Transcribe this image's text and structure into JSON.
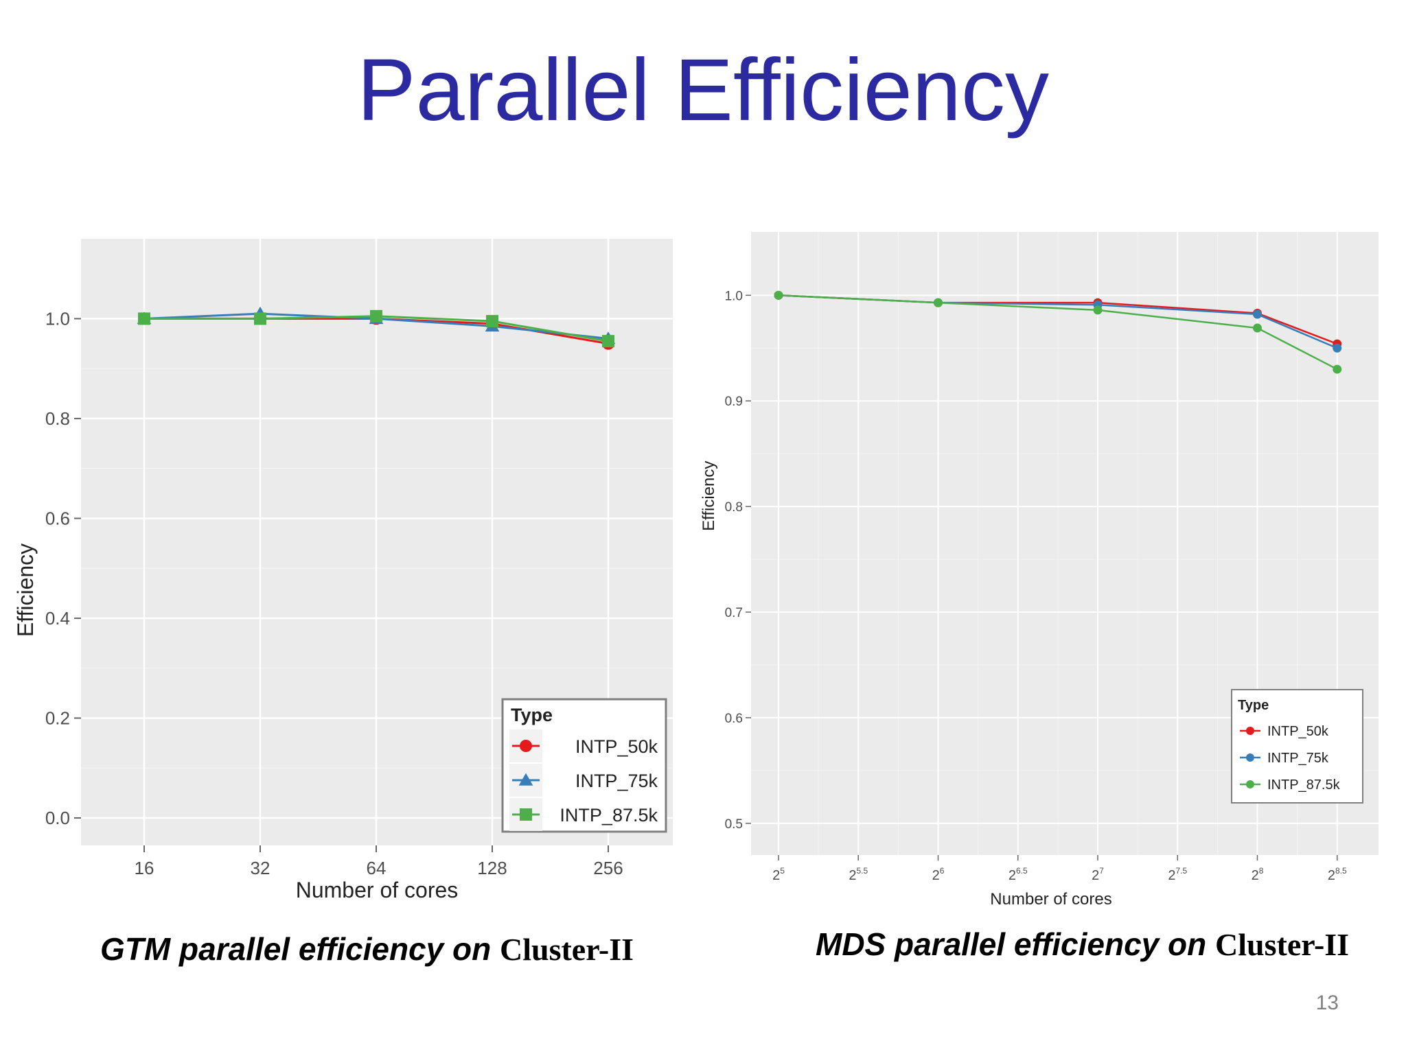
{
  "slide": {
    "title": "Parallel Efficiency",
    "page_number": "13",
    "captions": [
      {
        "italic": "GTM parallel efficiency on ",
        "rest": "Cluster-II"
      },
      {
        "italic": "MDS parallel efficiency on ",
        "rest": "Cluster-II"
      }
    ]
  },
  "colors": {
    "title": "#2b2aa0",
    "panel": "#ebebeb",
    "grid": "#ffffff",
    "INTP_50k": "#e41a1c",
    "INTP_75k": "#377eb8",
    "INTP_87.5k": "#4daf4a"
  },
  "chart_data": [
    {
      "type": "line",
      "xlabel": "Number of cores",
      "ylabel": "Efficiency",
      "x_scale": "log2",
      "x": [
        16,
        32,
        64,
        128,
        256
      ],
      "x_tick_labels": [
        "16",
        "32",
        "64",
        "128",
        "256"
      ],
      "y_ticks": [
        0.0,
        0.2,
        0.4,
        0.6,
        0.8,
        1.0
      ],
      "y_tick_labels": [
        "0.0",
        "0.2",
        "0.4",
        "0.6",
        "0.8",
        "1.0"
      ],
      "ylim": [
        -0.055,
        1.16
      ],
      "grid": true,
      "legend": {
        "title": "Type",
        "placement": "bottom-right"
      },
      "series": [
        {
          "name": "INTP_50k",
          "marker": "circle",
          "values": [
            1.0,
            1.0,
            1.0,
            0.99,
            0.95
          ]
        },
        {
          "name": "INTP_75k",
          "marker": "triangle",
          "values": [
            1.0,
            1.01,
            1.0,
            0.985,
            0.96
          ]
        },
        {
          "name": "INTP_87.5k",
          "marker": "square",
          "values": [
            1.0,
            1.0,
            1.005,
            0.995,
            0.955
          ]
        }
      ]
    },
    {
      "type": "line",
      "xlabel": "Number of cores",
      "ylabel": "Efficiency",
      "x_scale": "log2",
      "x": [
        32,
        64,
        128,
        256,
        362
      ],
      "x_tick_labels": [
        {
          "base": "2",
          "exp": "5"
        },
        {
          "base": "2",
          "exp": "5.5"
        },
        {
          "base": "2",
          "exp": "6"
        },
        {
          "base": "2",
          "exp": "6.5"
        },
        {
          "base": "2",
          "exp": "7"
        },
        {
          "base": "2",
          "exp": "7.5"
        },
        {
          "base": "2",
          "exp": "8"
        },
        {
          "base": "2",
          "exp": "8.5"
        }
      ],
      "y_ticks": [
        0.5,
        0.6,
        0.7,
        0.8,
        0.9,
        1.0
      ],
      "y_tick_labels": [
        "0.5",
        "0.6",
        "0.7",
        "0.8",
        "0.9",
        "1.0"
      ],
      "ylim": [
        0.47,
        1.06
      ],
      "grid": true,
      "legend": {
        "title": "Type",
        "placement": "bottom-right"
      },
      "series": [
        {
          "name": "INTP_50k",
          "marker": "circle",
          "values": [
            1.0,
            0.993,
            0.993,
            0.983,
            0.954
          ]
        },
        {
          "name": "INTP_75k",
          "marker": "circle",
          "values": [
            1.0,
            0.993,
            0.991,
            0.982,
            0.95
          ]
        },
        {
          "name": "INTP_87.5k",
          "marker": "circle",
          "values": [
            1.0,
            0.993,
            0.986,
            0.969,
            0.93
          ]
        }
      ]
    }
  ]
}
